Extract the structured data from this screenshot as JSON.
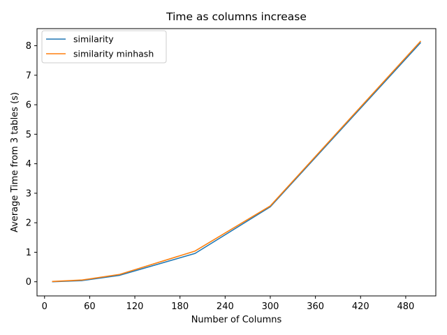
{
  "chart_data": {
    "type": "line",
    "title": "Time as columns increase",
    "xlabel": "Number of Columns",
    "ylabel": "Average Time from 3 tables (s)",
    "xlim": [
      -10,
      520
    ],
    "ylim": [
      -0.48,
      8.58
    ],
    "xticks": [
      0,
      60,
      120,
      180,
      240,
      300,
      360,
      420,
      480
    ],
    "yticks": [
      0,
      1,
      2,
      3,
      4,
      5,
      6,
      7,
      8
    ],
    "grid": false,
    "legend_position": "top-left",
    "x": [
      10,
      50,
      100,
      200,
      300,
      500
    ],
    "series": [
      {
        "name": "similarity",
        "color": "#1f77b4",
        "values": [
          0.0,
          0.04,
          0.22,
          0.96,
          2.54,
          8.11
        ]
      },
      {
        "name": "similarity minhash",
        "color": "#ff7f0e",
        "values": [
          0.01,
          0.06,
          0.25,
          1.04,
          2.57,
          8.16
        ]
      }
    ]
  }
}
